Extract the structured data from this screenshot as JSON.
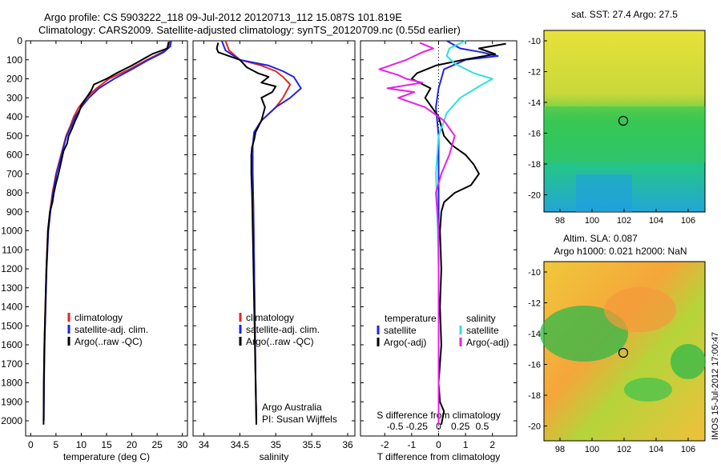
{
  "title_line1": "Argo profile: CS 5903222_118 09-Jul-2012 20120713_112 15.087S 101.819E",
  "title_line2": "Climatology: CARS2009. Satellite-adjusted climatology: synTS_20120709.nc (0.55d earlier)",
  "colors": {
    "climatology": "#e8231f",
    "satellite": "#1f23e8",
    "argo": "#000000",
    "magenta": "#e81fe8",
    "cyan": "#2fe0e0"
  },
  "chart_data": [
    {
      "type": "line",
      "panel": "temperature",
      "xlabel": "temperature (deg C)",
      "ylim": [
        0,
        2080
      ],
      "xlim": [
        -1,
        31
      ],
      "xticks": [
        0,
        5,
        10,
        15,
        20,
        25,
        30
      ],
      "yticks": [
        0,
        100,
        200,
        300,
        400,
        500,
        600,
        700,
        800,
        900,
        1000,
        1100,
        1200,
        1300,
        1400,
        1500,
        1600,
        1700,
        1800,
        1900,
        2000
      ],
      "legend": [
        "climatology",
        "satellite-adj. clim.",
        "Argo(..raw -QC)"
      ],
      "series": [
        {
          "name": "climatology",
          "color": "climatology",
          "x": [
            27.5,
            27.3,
            26,
            23,
            19.5,
            15.5,
            13,
            11,
            9.5,
            8.5,
            7.8,
            7,
            6,
            5,
            4.3,
            3.8,
            3.4,
            3.1,
            2.9,
            2.7,
            2.6,
            2.55
          ],
          "y": [
            0,
            30,
            60,
            100,
            150,
            200,
            250,
            300,
            350,
            400,
            450,
            500,
            600,
            700,
            800,
            900,
            1000,
            1200,
            1400,
            1600,
            1800,
            2000
          ]
        },
        {
          "name": "satellite-adj. clim.",
          "color": "satellite",
          "x": [
            27.8,
            27.6,
            26.3,
            23.3,
            20,
            16.5,
            13.5,
            11.5,
            10,
            8.8,
            8,
            7.1,
            6.1,
            5.1,
            4.4,
            3.9,
            3.5,
            3.15,
            2.95,
            2.75,
            2.65,
            2.6
          ],
          "y": [
            0,
            30,
            60,
            100,
            150,
            200,
            250,
            300,
            350,
            400,
            450,
            500,
            600,
            700,
            800,
            900,
            1000,
            1200,
            1400,
            1600,
            1800,
            2000
          ]
        },
        {
          "name": "Argo(..raw -QC)",
          "color": "argo",
          "x": [
            27.3,
            27,
            24,
            22,
            20,
            17,
            15,
            12.5,
            12,
            11,
            10,
            9.5,
            8.8,
            8.2,
            7.5,
            7.2,
            6.5,
            6,
            5.5,
            5,
            4.6,
            4.3,
            3.8,
            3.4,
            3.1,
            2.9,
            2.7,
            2.6,
            2.55
          ],
          "y": [
            5,
            40,
            70,
            100,
            130,
            170,
            200,
            230,
            260,
            300,
            340,
            380,
            420,
            460,
            500,
            540,
            580,
            640,
            700,
            750,
            800,
            850,
            900,
            1000,
            1200,
            1400,
            1600,
            1800,
            2020
          ]
        }
      ]
    },
    {
      "type": "line",
      "panel": "salinity",
      "xlabel": "salinity",
      "ylim": [
        0,
        2080
      ],
      "xlim": [
        33.85,
        36.1
      ],
      "xticks": [
        34,
        34.5,
        35,
        35.5,
        36
      ],
      "legend": [
        "climatology",
        "satellite-adj. clim.",
        "Argo(..raw -QC)"
      ],
      "annotation": [
        "Argo Australia",
        "PI: Susan Wijffels"
      ],
      "series": [
        {
          "name": "climatology",
          "color": "climatology",
          "x": [
            34.3,
            34.35,
            34.5,
            34.8,
            35,
            35.1,
            35.2,
            35.1,
            35,
            34.8,
            34.7,
            34.68,
            34.68,
            34.69,
            34.7,
            34.71,
            34.72,
            34.73
          ],
          "y": [
            0,
            50,
            100,
            130,
            160,
            190,
            230,
            300,
            350,
            420,
            480,
            550,
            700,
            900,
            1200,
            1500,
            1800,
            2000
          ]
        },
        {
          "name": "satellite-adj. clim.",
          "color": "satellite",
          "x": [
            34.25,
            34.3,
            34.5,
            34.9,
            35.1,
            35.25,
            35.35,
            35.2,
            35,
            34.8,
            34.7,
            34.68,
            34.68,
            34.69,
            34.7,
            34.71,
            34.72,
            34.73
          ],
          "y": [
            0,
            50,
            100,
            130,
            160,
            190,
            250,
            300,
            350,
            420,
            480,
            550,
            700,
            900,
            1200,
            1500,
            1800,
            2000
          ]
        },
        {
          "name": "Argo(..raw -QC)",
          "color": "argo",
          "x": [
            34.2,
            34.18,
            34.2,
            34.5,
            34.6,
            34.75,
            34.9,
            34.8,
            35,
            34.95,
            34.8,
            34.85,
            34.8,
            34.72,
            34.7,
            34.67,
            34.66,
            34.66,
            34.67,
            34.68,
            34.7,
            34.72,
            34.73
          ],
          "y": [
            10,
            40,
            60,
            100,
            140,
            170,
            190,
            220,
            240,
            270,
            300,
            350,
            420,
            480,
            520,
            560,
            600,
            700,
            800,
            1000,
            1400,
            1800,
            2020
          ]
        }
      ]
    },
    {
      "type": "line",
      "panel": "difference",
      "xlabel": "T difference from climatology",
      "xlabel_top": "S difference from climatology",
      "xticks_bottom": [
        -2,
        -1,
        0,
        1,
        2
      ],
      "xticks_top": [
        "-0.5",
        "-0.25",
        "0",
        "0.25",
        "0.5"
      ],
      "ylim": [
        0,
        2080
      ],
      "xlim": [
        -2.9,
        2.9
      ],
      "legend_temperature": [
        "temperature",
        "satellite",
        "Argo(-adj)"
      ],
      "legend_salinity": [
        "salinity",
        "satellite",
        "Argo(-adj)"
      ],
      "series": [
        {
          "name": "temperature satellite",
          "color": "satellite",
          "x": [
            0.3,
            0.8,
            1.6,
            2.2,
            1.0,
            0.2,
            0.0,
            -0.1,
            0.0,
            0.0,
            0.0,
            0.0,
            0.0
          ],
          "y": [
            0,
            40,
            60,
            80,
            100,
            150,
            250,
            350,
            500,
            800,
            1200,
            1600,
            2000
          ]
        },
        {
          "name": "temperature Argo(-adj)",
          "color": "argo",
          "x": [
            2.5,
            1.5,
            2.1,
            0.9,
            -0.1,
            -0.8,
            -1.0,
            -0.3,
            -0.5,
            0.0,
            0.2,
            0.5,
            1.0,
            1.3,
            1.5,
            1.2,
            0.6,
            0.2,
            0.1,
            0.05,
            0.1,
            0.05,
            0.1,
            0.0,
            0.05,
            0.2,
            0.1
          ],
          "y": [
            15,
            40,
            70,
            100,
            130,
            170,
            200,
            250,
            300,
            400,
            500,
            550,
            600,
            650,
            700,
            760,
            800,
            850,
            900,
            1000,
            1200,
            1400,
            1600,
            1800,
            1900,
            1950,
            2020
          ]
        },
        {
          "name": "salinity satellite",
          "color": "cyan",
          "x": [
            1.0,
            0.4,
            0.3,
            0.6,
            1.3,
            2.0,
            1.5,
            0.8,
            0.3,
            0.0,
            -0.1,
            -0.05,
            0.0,
            0.0,
            0.0
          ],
          "y": [
            0,
            40,
            80,
            120,
            170,
            200,
            240,
            300,
            380,
            500,
            700,
            900,
            1200,
            1600,
            2000
          ]
        },
        {
          "name": "salinity Argo(-adj)",
          "color": "magenta",
          "x": [
            -0.7,
            -0.2,
            -0.6,
            -1.2,
            -2.2,
            -1.5,
            -1.2,
            -0.6,
            -1.9,
            -0.9,
            -1.5,
            -0.5,
            0.2,
            0.6,
            0.4,
            0.1,
            -0.1,
            0.0,
            0.0,
            0.0
          ],
          "y": [
            10,
            40,
            60,
            100,
            150,
            180,
            200,
            220,
            250,
            270,
            300,
            350,
            420,
            500,
            600,
            700,
            800,
            1000,
            1500,
            2020
          ]
        }
      ]
    }
  ],
  "maps": [
    {
      "title": "sat. SST: 27.4 Argo: 27.5",
      "xticks": [
        "98",
        "100",
        "102",
        "104",
        "106"
      ],
      "yticks": [
        "-10",
        "-12",
        "-14",
        "-16",
        "-18",
        "-20"
      ]
    },
    {
      "title_line1": "Altim. SLA: 0.087",
      "title_line2": "Argo h1000: 0.021 h2000: NaN",
      "xticks": [
        "98",
        "100",
        "102",
        "104",
        "106"
      ],
      "yticks": [
        "-10",
        "-12",
        "-14",
        "-16",
        "-18",
        "-20"
      ]
    }
  ],
  "footer_text": "IMOS 15-Jul-2012 17:00:47"
}
